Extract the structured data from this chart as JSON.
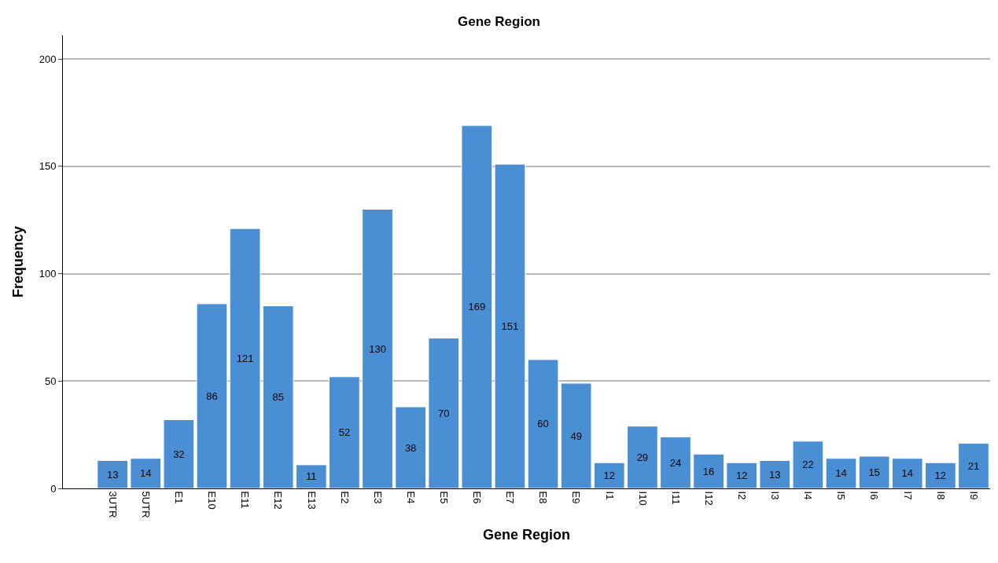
{
  "chart_data": {
    "type": "bar",
    "title": "Gene Region",
    "xlabel": "Gene Region",
    "ylabel": "Frequency",
    "categories": [
      "3UTR",
      "5UTR",
      "E1",
      "E10",
      "E11",
      "E12",
      "E13",
      "E2",
      "E3",
      "E4",
      "E5",
      "E6",
      "E7",
      "E8",
      "E9",
      "I1",
      "I10",
      "I11",
      "I12",
      "I2",
      "I3",
      "I4",
      "I5",
      "I6",
      "I7",
      "I8",
      "I9"
    ],
    "values": [
      13,
      14,
      32,
      86,
      121,
      85,
      11,
      52,
      130,
      38,
      70,
      169,
      151,
      60,
      49,
      12,
      29,
      24,
      16,
      12,
      13,
      22,
      14,
      15,
      14,
      12,
      21
    ],
    "color": "#4a8fd3",
    "ylim": [
      0,
      211
    ],
    "yticks": [
      0,
      50,
      100,
      150,
      200
    ],
    "grid": "y",
    "data_labels": true,
    "legend": false
  }
}
